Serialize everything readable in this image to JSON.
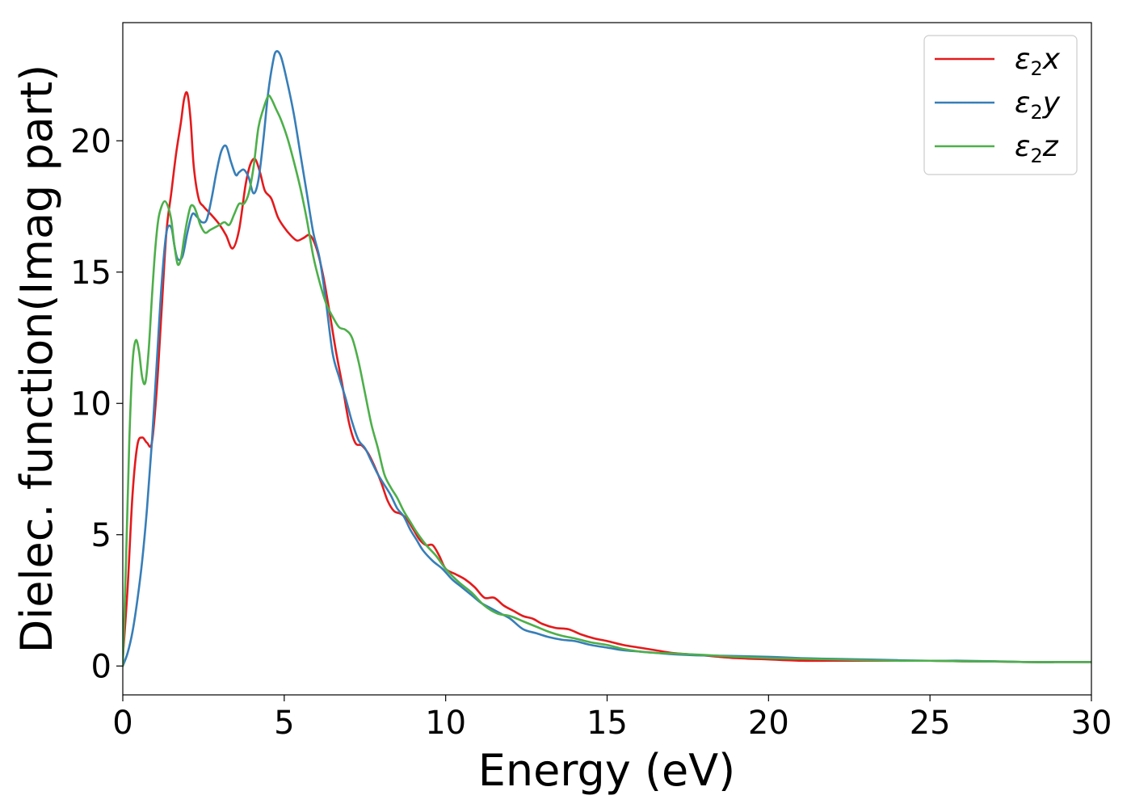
{
  "chart_data": {
    "type": "line",
    "title": "",
    "xlabel": "Energy (eV)",
    "ylabel": "Dielec. function(Imag part)",
    "xlim": [
      0,
      30
    ],
    "ylim": [
      -1.1,
      24.5
    ],
    "xticks": [
      0,
      5,
      10,
      15,
      20,
      25,
      30
    ],
    "yticks": [
      0,
      5,
      10,
      15,
      20
    ],
    "grid": false,
    "legend": "top-right",
    "series": [
      {
        "name": "x",
        "legend_base": "ε",
        "legend_sub": "2",
        "color": "#e41a1c",
        "x": [
          0,
          0.15,
          0.3,
          0.45,
          0.6,
          0.75,
          0.9,
          1.05,
          1.2,
          1.35,
          1.5,
          1.65,
          1.8,
          1.9,
          2.0,
          2.1,
          2.2,
          2.35,
          2.5,
          2.65,
          2.8,
          3.0,
          3.2,
          3.4,
          3.6,
          3.8,
          3.95,
          4.1,
          4.25,
          4.4,
          4.6,
          4.8,
          5.0,
          5.2,
          5.4,
          5.6,
          5.8,
          6.0,
          6.2,
          6.4,
          6.6,
          6.8,
          7.0,
          7.2,
          7.4,
          7.6,
          7.8,
          8.0,
          8.2,
          8.4,
          8.6,
          8.8,
          9.0,
          9.2,
          9.4,
          9.6,
          9.8,
          10.0,
          10.3,
          10.6,
          10.9,
          11.2,
          11.5,
          11.8,
          12.1,
          12.4,
          12.7,
          13.0,
          13.4,
          13.8,
          14.2,
          14.6,
          15.0,
          15.5,
          16.0,
          16.5,
          17.0,
          17.5,
          18.0,
          19.0,
          20.0,
          21.0,
          22.0,
          23.0,
          24.0,
          25.0,
          26.0,
          27.0,
          28.0,
          29.0,
          30.0
        ],
        "y": [
          0.3,
          3.0,
          6.5,
          8.4,
          8.7,
          8.5,
          8.5,
          10.5,
          13.5,
          16.5,
          18.0,
          19.5,
          20.7,
          21.6,
          21.8,
          20.8,
          19.0,
          17.8,
          17.5,
          17.3,
          17.1,
          16.8,
          16.4,
          15.9,
          16.6,
          18.3,
          19.1,
          19.3,
          18.8,
          18.1,
          17.8,
          17.1,
          16.7,
          16.4,
          16.2,
          16.3,
          16.4,
          15.9,
          14.9,
          13.5,
          12.0,
          10.7,
          9.3,
          8.5,
          8.4,
          8.1,
          7.6,
          7.0,
          6.3,
          5.9,
          5.8,
          5.6,
          5.2,
          4.8,
          4.6,
          4.6,
          4.2,
          3.7,
          3.5,
          3.3,
          3.0,
          2.6,
          2.6,
          2.3,
          2.1,
          1.9,
          1.8,
          1.6,
          1.45,
          1.4,
          1.2,
          1.05,
          0.95,
          0.8,
          0.7,
          0.6,
          0.5,
          0.45,
          0.4,
          0.3,
          0.25,
          0.2,
          0.2,
          0.2,
          0.2,
          0.2,
          0.18,
          0.17,
          0.15,
          0.15,
          0.15
        ]
      },
      {
        "name": "y",
        "legend_base": "ε",
        "legend_sub": "2",
        "color": "#377eb8",
        "x": [
          0,
          0.15,
          0.3,
          0.45,
          0.6,
          0.75,
          0.9,
          1.05,
          1.2,
          1.35,
          1.5,
          1.6,
          1.7,
          1.85,
          2.0,
          2.15,
          2.3,
          2.45,
          2.6,
          2.75,
          2.9,
          3.05,
          3.2,
          3.35,
          3.5,
          3.6,
          3.75,
          3.9,
          4.05,
          4.2,
          4.35,
          4.5,
          4.65,
          4.75,
          4.9,
          5.1,
          5.3,
          5.5,
          5.7,
          5.9,
          6.1,
          6.3,
          6.5,
          6.7,
          6.9,
          7.1,
          7.3,
          7.5,
          7.7,
          7.9,
          8.1,
          8.3,
          8.5,
          8.7,
          8.9,
          9.1,
          9.3,
          9.6,
          9.9,
          10.2,
          10.5,
          10.8,
          11.1,
          11.4,
          11.7,
          12.0,
          12.4,
          12.8,
          13.2,
          13.6,
          14.0,
          14.5,
          15.0,
          15.5,
          16.0,
          16.5,
          17.0,
          17.5,
          18.0,
          19.0,
          20.0,
          21.0,
          22.0,
          23.0,
          24.0,
          25.0,
          26.0,
          27.0,
          28.0,
          29.0,
          30.0
        ],
        "y": [
          0.0,
          0.5,
          1.3,
          2.5,
          4.0,
          6.0,
          8.5,
          11.5,
          14.5,
          16.5,
          16.7,
          16.0,
          15.5,
          15.6,
          16.5,
          17.2,
          17.1,
          16.9,
          17.0,
          17.8,
          18.8,
          19.6,
          19.8,
          19.2,
          18.7,
          18.8,
          18.9,
          18.6,
          18.0,
          18.5,
          20.0,
          21.8,
          23.0,
          23.4,
          23.2,
          22.2,
          21.0,
          19.5,
          18.0,
          16.5,
          15.5,
          13.8,
          11.9,
          11.0,
          10.2,
          9.3,
          8.6,
          8.3,
          7.8,
          7.3,
          6.9,
          6.5,
          6.0,
          5.7,
          5.2,
          4.8,
          4.4,
          4.0,
          3.7,
          3.3,
          3.0,
          2.7,
          2.4,
          2.2,
          2.0,
          1.8,
          1.4,
          1.25,
          1.1,
          1.0,
          0.95,
          0.8,
          0.7,
          0.6,
          0.55,
          0.5,
          0.45,
          0.42,
          0.4,
          0.38,
          0.35,
          0.3,
          0.27,
          0.25,
          0.22,
          0.2,
          0.2,
          0.18,
          0.15,
          0.15,
          0.15
        ]
      },
      {
        "name": "z",
        "legend_base": "ε",
        "legend_sub": "2",
        "color": "#4daf4a",
        "x": [
          0,
          0.1,
          0.2,
          0.3,
          0.4,
          0.5,
          0.6,
          0.7,
          0.8,
          0.9,
          1.0,
          1.1,
          1.2,
          1.3,
          1.4,
          1.5,
          1.6,
          1.7,
          1.8,
          1.9,
          2.0,
          2.1,
          2.2,
          2.3,
          2.4,
          2.55,
          2.7,
          2.85,
          3.0,
          3.15,
          3.3,
          3.45,
          3.6,
          3.75,
          3.9,
          4.05,
          4.2,
          4.35,
          4.5,
          4.6,
          4.75,
          4.9,
          5.1,
          5.3,
          5.5,
          5.7,
          5.9,
          6.1,
          6.3,
          6.5,
          6.7,
          6.9,
          7.1,
          7.3,
          7.5,
          7.7,
          7.9,
          8.1,
          8.3,
          8.5,
          8.7,
          8.9,
          9.1,
          9.4,
          9.7,
          10.0,
          10.4,
          10.8,
          11.2,
          11.6,
          12.0,
          12.4,
          12.8,
          13.2,
          13.6,
          14.0,
          14.5,
          15.0,
          15.5,
          16.0,
          16.5,
          17.0,
          17.5,
          18.0,
          19.0,
          20.0,
          21.0,
          22.0,
          23.0,
          24.0,
          25.0,
          26.0,
          27.0,
          28.0,
          29.0,
          30.0
        ],
        "y": [
          0.0,
          4.0,
          8.5,
          11.5,
          12.4,
          12.0,
          11.0,
          10.8,
          12.0,
          14.0,
          15.8,
          17.0,
          17.5,
          17.7,
          17.5,
          17.0,
          16.0,
          15.3,
          15.5,
          16.3,
          17.0,
          17.5,
          17.5,
          17.2,
          16.8,
          16.5,
          16.6,
          16.7,
          16.8,
          16.9,
          16.8,
          17.2,
          17.6,
          17.6,
          18.0,
          19.0,
          20.5,
          21.2,
          21.7,
          21.6,
          21.2,
          20.8,
          20.1,
          19.2,
          18.2,
          17.0,
          15.6,
          14.6,
          13.8,
          13.3,
          12.9,
          12.8,
          12.5,
          11.6,
          10.4,
          9.2,
          8.3,
          7.3,
          6.8,
          6.4,
          5.9,
          5.5,
          5.1,
          4.6,
          4.2,
          3.7,
          3.2,
          2.8,
          2.3,
          2.0,
          1.9,
          1.7,
          1.5,
          1.3,
          1.15,
          1.05,
          0.9,
          0.8,
          0.65,
          0.55,
          0.5,
          0.48,
          0.45,
          0.42,
          0.35,
          0.3,
          0.28,
          0.25,
          0.22,
          0.2,
          0.2,
          0.18,
          0.17,
          0.15,
          0.15,
          0.15
        ]
      }
    ]
  }
}
